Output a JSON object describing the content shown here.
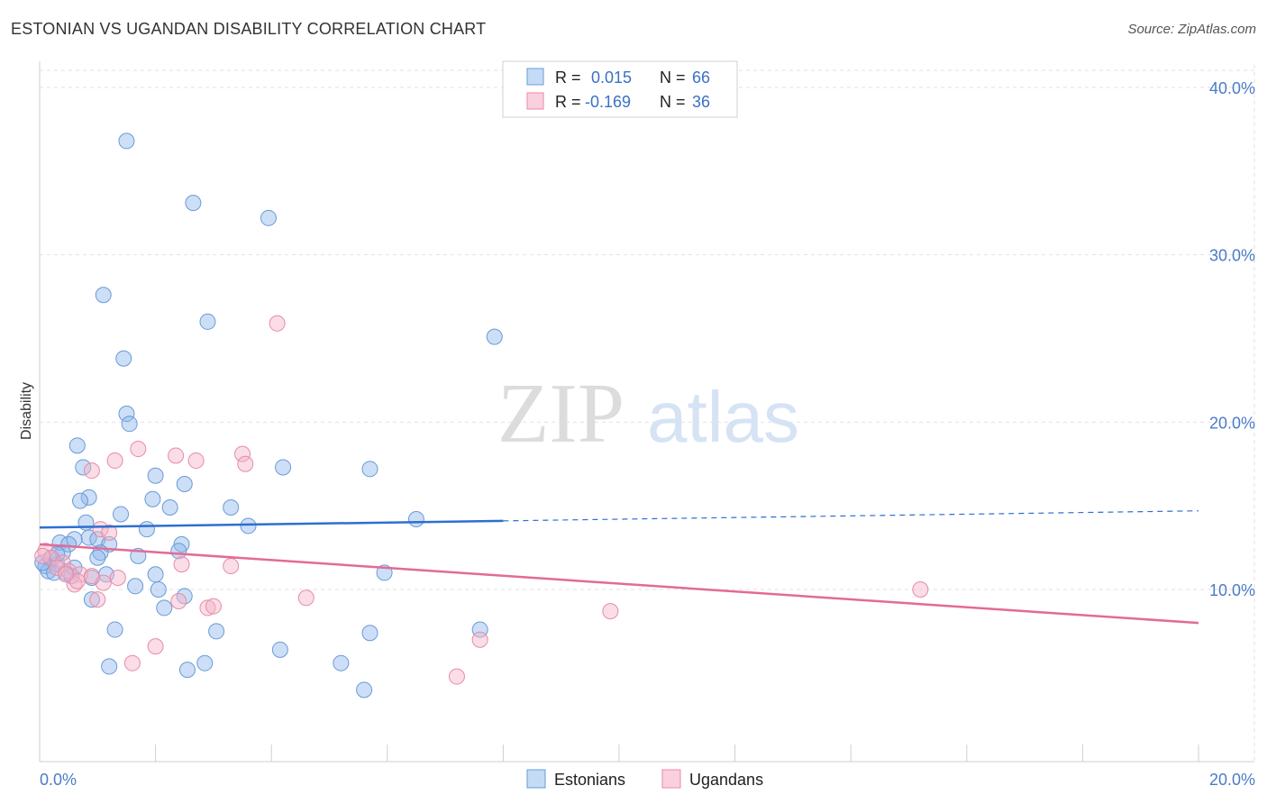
{
  "title": "ESTONIAN VS UGANDAN DISABILITY CORRELATION CHART",
  "source": "Source: ZipAtlas.com",
  "watermark": {
    "zip": "ZIP",
    "atlas": "atlas"
  },
  "chart_data": {
    "type": "scatter",
    "title": "ESTONIAN VS UGANDAN DISABILITY CORRELATION CHART",
    "ylabel": "Disability",
    "xlabel": "",
    "xlim": [
      0,
      20
    ],
    "ylim": [
      0,
      41
    ],
    "x_tick_labels": [
      {
        "value": 0,
        "label": "0.0%"
      },
      {
        "value": 20,
        "label": "20.0%"
      }
    ],
    "y_tick_labels": [
      {
        "value": 10,
        "label": "10.0%"
      },
      {
        "value": 20,
        "label": "20.0%"
      },
      {
        "value": 30,
        "label": "30.0%"
      },
      {
        "value": 40,
        "label": "40.0%"
      }
    ],
    "grid": true,
    "legend_position": "top-center",
    "stats": [
      {
        "r_label": "R =",
        "r_value": "0.015",
        "n_label": "N =",
        "n_value": "66"
      },
      {
        "r_label": "R =",
        "r_value": "-0.169",
        "n_label": "N =",
        "n_value": "36"
      }
    ],
    "series": [
      {
        "name": "Estonians",
        "color": "#8fb8ea",
        "edge": "#6a9ad8",
        "trend_color": "#2d6fd0",
        "trend": {
          "x0": 0,
          "y0": 13.7,
          "x1": 8,
          "y1": 14.1,
          "x_dash_end": 20,
          "y_dash_end": 14.7
        },
        "points": [
          [
            1.5,
            36.8
          ],
          [
            2.65,
            33.1
          ],
          [
            3.95,
            32.2
          ],
          [
            1.1,
            27.6
          ],
          [
            2.9,
            26.0
          ],
          [
            7.85,
            25.1
          ],
          [
            1.45,
            23.8
          ],
          [
            1.5,
            20.5
          ],
          [
            1.55,
            19.9
          ],
          [
            0.65,
            18.6
          ],
          [
            0.75,
            17.3
          ],
          [
            2.0,
            16.8
          ],
          [
            4.2,
            17.3
          ],
          [
            5.7,
            17.2
          ],
          [
            2.5,
            16.3
          ],
          [
            0.85,
            15.5
          ],
          [
            0.7,
            15.3
          ],
          [
            1.95,
            15.4
          ],
          [
            2.25,
            14.9
          ],
          [
            3.3,
            14.9
          ],
          [
            1.4,
            14.5
          ],
          [
            0.8,
            14.0
          ],
          [
            3.6,
            13.8
          ],
          [
            6.5,
            14.2
          ],
          [
            1.85,
            13.6
          ],
          [
            0.85,
            13.1
          ],
          [
            0.6,
            13.0
          ],
          [
            0.35,
            12.8
          ],
          [
            1.0,
            13.0
          ],
          [
            0.5,
            12.7
          ],
          [
            1.2,
            12.7
          ],
          [
            2.45,
            12.7
          ],
          [
            0.4,
            12.2
          ],
          [
            1.05,
            12.2
          ],
          [
            2.4,
            12.3
          ],
          [
            0.2,
            11.8
          ],
          [
            1.0,
            11.9
          ],
          [
            0.3,
            11.5
          ],
          [
            0.1,
            11.4
          ],
          [
            0.15,
            11.1
          ],
          [
            0.25,
            11.0
          ],
          [
            0.45,
            11.0
          ],
          [
            0.55,
            10.8
          ],
          [
            1.15,
            10.9
          ],
          [
            2.0,
            10.9
          ],
          [
            0.9,
            10.7
          ],
          [
            5.95,
            11.0
          ],
          [
            1.65,
            10.2
          ],
          [
            2.05,
            10.0
          ],
          [
            0.9,
            9.4
          ],
          [
            2.5,
            9.6
          ],
          [
            2.15,
            8.9
          ],
          [
            1.3,
            7.6
          ],
          [
            3.05,
            7.5
          ],
          [
            5.7,
            7.4
          ],
          [
            7.6,
            7.6
          ],
          [
            4.15,
            6.4
          ],
          [
            1.2,
            5.4
          ],
          [
            2.55,
            5.2
          ],
          [
            2.85,
            5.6
          ],
          [
            5.2,
            5.6
          ],
          [
            5.6,
            4.0
          ],
          [
            0.05,
            11.6
          ],
          [
            0.3,
            12.1
          ],
          [
            0.6,
            11.3
          ],
          [
            1.7,
            12.0
          ]
        ]
      },
      {
        "name": "Ugandans",
        "color": "#f5b3c8",
        "edge": "#e88aa8",
        "trend_color": "#e46a96",
        "trend": {
          "x0": 0,
          "y0": 12.7,
          "x1": 20,
          "y1": 8.0
        },
        "points": [
          [
            4.1,
            25.9
          ],
          [
            1.7,
            18.4
          ],
          [
            2.35,
            18.0
          ],
          [
            3.5,
            18.1
          ],
          [
            1.3,
            17.7
          ],
          [
            2.7,
            17.7
          ],
          [
            3.55,
            17.5
          ],
          [
            0.9,
            17.1
          ],
          [
            1.05,
            13.6
          ],
          [
            1.2,
            13.4
          ],
          [
            0.1,
            12.3
          ],
          [
            0.2,
            11.9
          ],
          [
            0.4,
            11.6
          ],
          [
            2.45,
            11.5
          ],
          [
            3.3,
            11.4
          ],
          [
            0.5,
            11.1
          ],
          [
            0.7,
            10.9
          ],
          [
            0.9,
            10.8
          ],
          [
            1.35,
            10.7
          ],
          [
            0.6,
            10.3
          ],
          [
            0.65,
            10.5
          ],
          [
            1.1,
            10.4
          ],
          [
            2.4,
            9.3
          ],
          [
            2.9,
            8.9
          ],
          [
            3.0,
            9.0
          ],
          [
            1.0,
            9.4
          ],
          [
            4.6,
            9.5
          ],
          [
            15.2,
            10.0
          ],
          [
            9.85,
            8.7
          ],
          [
            7.6,
            7.0
          ],
          [
            2.0,
            6.6
          ],
          [
            1.6,
            5.6
          ],
          [
            7.2,
            4.8
          ],
          [
            0.3,
            11.3
          ],
          [
            0.05,
            12.0
          ],
          [
            0.45,
            10.9
          ]
        ]
      }
    ]
  }
}
